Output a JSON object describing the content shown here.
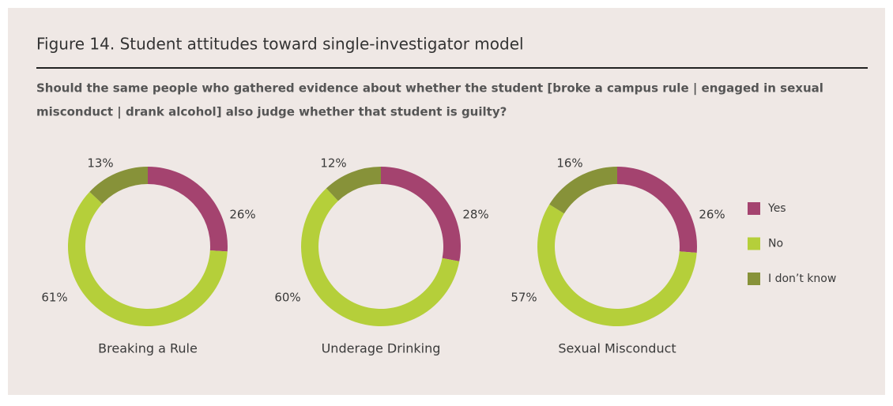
{
  "title": "Figure 14. Student attitudes toward single-investigator model",
  "subtitle": [
    "Should the same people who gathered evidence about whether the student [broke a campus rule | engaged in sexual",
    "misconduct | drank alcohol] also judge whether that student is guilty?"
  ],
  "chart_data": [
    {
      "type": "pie",
      "title": "Breaking a Rule",
      "categories": [
        "Yes",
        "No",
        "I don’t know"
      ],
      "values": [
        26,
        61,
        13
      ],
      "value_labels": [
        "26%",
        "61%",
        "13%"
      ],
      "colors": [
        "#a4436f",
        "#b5cf3a",
        "#879239"
      ]
    },
    {
      "type": "pie",
      "title": "Underage Drinking",
      "categories": [
        "Yes",
        "No",
        "I don’t know"
      ],
      "values": [
        28,
        60,
        12
      ],
      "value_labels": [
        "28%",
        "60%",
        "12%"
      ],
      "colors": [
        "#a4436f",
        "#b5cf3a",
        "#879239"
      ]
    },
    {
      "type": "pie",
      "title": "Sexual Misconduct",
      "categories": [
        "Yes",
        "No",
        "I don’t know"
      ],
      "values": [
        26,
        57,
        16
      ],
      "value_labels": [
        "26%",
        "57%",
        "16%"
      ],
      "colors": [
        "#a4436f",
        "#b5cf3a",
        "#879239"
      ]
    }
  ]
}
